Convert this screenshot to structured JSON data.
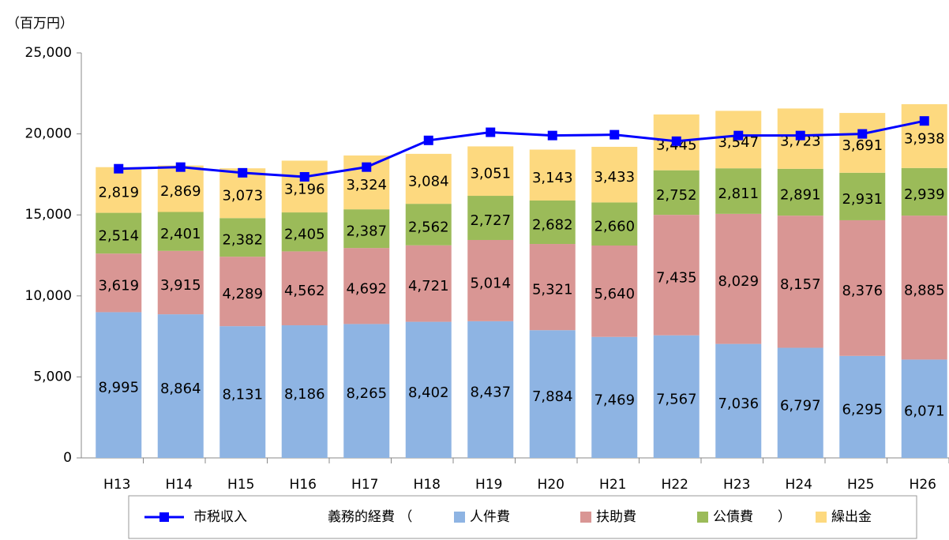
{
  "chart_data": {
    "type": "stacked_bar_line",
    "y_unit_label": "（百万円）",
    "categories": [
      "H13",
      "H14",
      "H15",
      "H16",
      "H17",
      "H18",
      "H19",
      "H20",
      "H21",
      "H22",
      "H23",
      "H24",
      "H25",
      "H26"
    ],
    "ylim": [
      0,
      25000
    ],
    "yticks": [
      0,
      {
        "value": 5000,
        "label": "5,000"
      },
      {
        "value": 10000,
        "label": "10,000"
      },
      {
        "value": 15000,
        "label": "15,000"
      },
      {
        "value": 20000,
        "label": "20,000"
      },
      {
        "value": 25000,
        "label": "25,000"
      }
    ],
    "grid": false,
    "legend_group_open": "義務的経費 （",
    "legend_group_close": "）",
    "series": [
      {
        "name": "人件費",
        "color": "#8eb4e3",
        "values": [
          8995,
          8864,
          8131,
          8186,
          8265,
          8402,
          8437,
          7884,
          7469,
          7567,
          7036,
          6797,
          6295,
          6071
        ],
        "value_labels": [
          "8,995",
          "8,864",
          "8,131",
          "8,186",
          "8,265",
          "8,402",
          "8,437",
          "7,884",
          "7,469",
          "7,567",
          "7,036",
          "6,797",
          "6,295",
          "6,071"
        ]
      },
      {
        "name": "扶助費",
        "color": "#d99694",
        "values": [
          3619,
          3915,
          4289,
          4562,
          4692,
          4721,
          5014,
          5321,
          5640,
          7435,
          8029,
          8157,
          8376,
          8885
        ],
        "value_labels": [
          "3,619",
          "3,915",
          "4,289",
          "4,562",
          "4,692",
          "4,721",
          "5,014",
          "5,321",
          "5,640",
          "7,435",
          "8,029",
          "8,157",
          "8,376",
          "8,885"
        ]
      },
      {
        "name": "公債費",
        "color": "#9bbb59",
        "values": [
          2514,
          2401,
          2382,
          2405,
          2387,
          2562,
          2727,
          2682,
          2660,
          2752,
          2811,
          2891,
          2931,
          2939
        ],
        "value_labels": [
          "2,514",
          "2,401",
          "2,382",
          "2,405",
          "2,387",
          "2,562",
          "2,727",
          "2,682",
          "2,660",
          "2,752",
          "2,811",
          "2,891",
          "2,931",
          "2,939"
        ]
      },
      {
        "name": "繰出金",
        "color": "#fdd97f",
        "values": [
          2819,
          2869,
          3073,
          3196,
          3324,
          3084,
          3051,
          3143,
          3433,
          3445,
          3547,
          3723,
          3691,
          3938
        ],
        "value_labels": [
          "2,819",
          "2,869",
          "3,073",
          "3,196",
          "3,324",
          "3,084",
          "3,051",
          "3,143",
          "3,433",
          "3,445",
          "3,547",
          "3,723",
          "3,691",
          "3,938"
        ]
      }
    ],
    "line_series": {
      "name": "市税収入",
      "color": "#0000ff",
      "values": [
        17850,
        17950,
        17600,
        17350,
        17950,
        19600,
        20100,
        19900,
        19950,
        19550,
        19900,
        19900,
        20000,
        20800
      ]
    }
  }
}
